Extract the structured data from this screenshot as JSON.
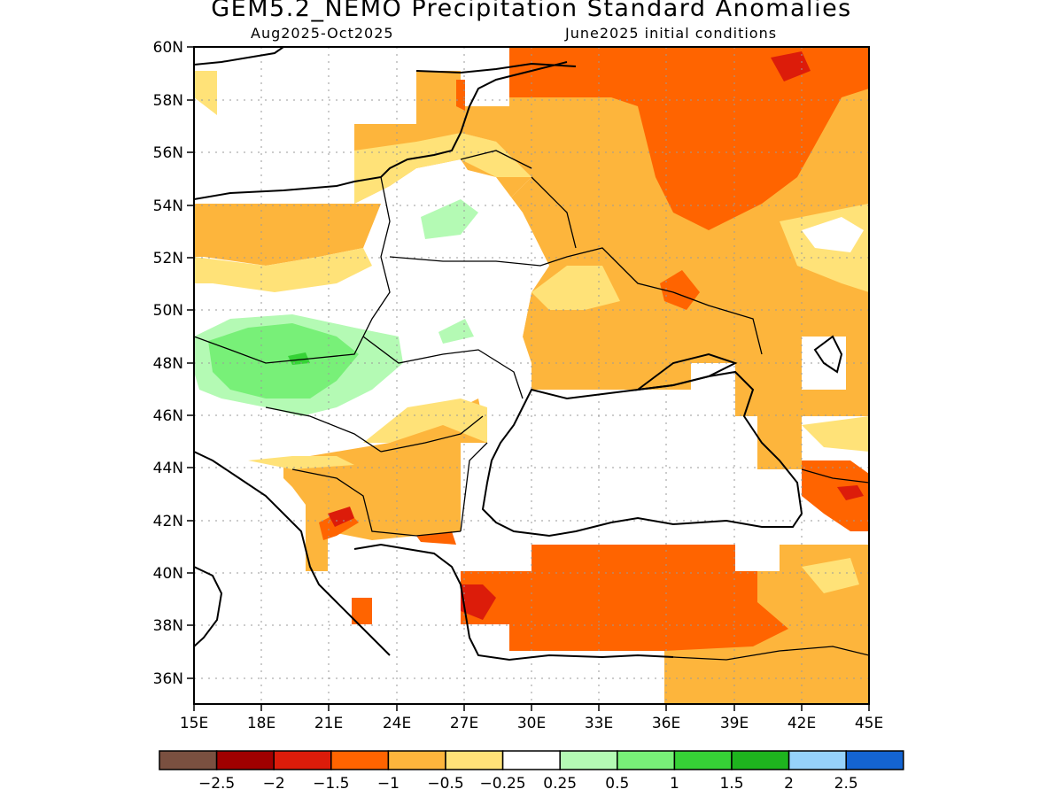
{
  "title": "GEM5.2_NEMO Precipitation Standard Anomalies",
  "subtitle_left": "Aug2025-Oct2025",
  "subtitle_right": "June2025 initial conditions",
  "map": {
    "lon_range": [
      15,
      45
    ],
    "lat_range": [
      35,
      60
    ],
    "lon_ticks": [
      "15E",
      "18E",
      "21E",
      "24E",
      "27E",
      "30E",
      "33E",
      "36E",
      "39E",
      "42E",
      "45E"
    ],
    "lat_ticks": [
      "36N",
      "38N",
      "40N",
      "42N",
      "44N",
      "46N",
      "48N",
      "50N",
      "52N",
      "54N",
      "56N",
      "58N",
      "60N"
    ]
  },
  "legend": {
    "colors": [
      "#7a5040",
      "#a00000",
      "#dc1c0a",
      "#ff6400",
      "#fdb53c",
      "#ffe278",
      "#ffffff",
      "#b4fab4",
      "#78f078",
      "#36d236",
      "#1eb41e",
      "#96d2fa",
      "#1464d2"
    ],
    "labels": [
      "-2.5",
      "-2",
      "-1.5",
      "-1",
      "-0.5",
      "-0.25",
      "0.25",
      "0.5",
      "1",
      "1.5",
      "2",
      "2.5"
    ]
  }
}
